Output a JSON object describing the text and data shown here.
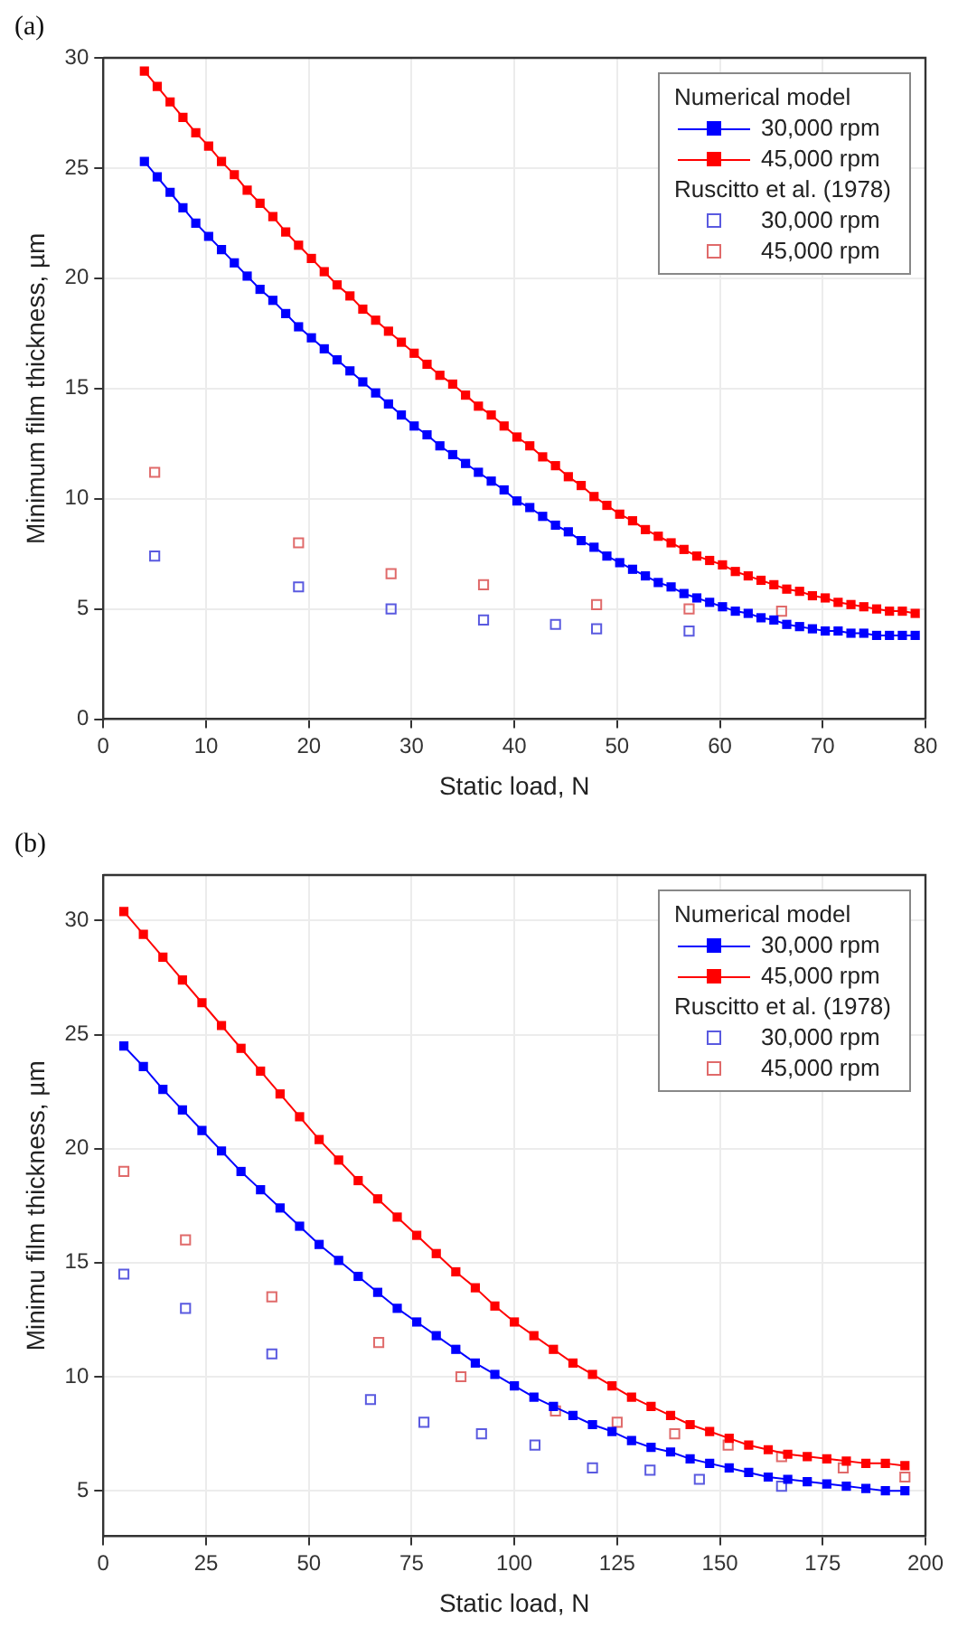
{
  "chart_data": [
    {
      "type": "line",
      "title": "(a)",
      "xlabel": "Static load, N",
      "ylabel": "Minimum film thickness, µm",
      "legend_title": "Numerical model",
      "annotations": [
        "Ruscitto et al. (1978)"
      ],
      "xlim": [
        0,
        80
      ],
      "xticks": [
        0,
        10,
        20,
        30,
        40,
        50,
        60,
        70,
        80
      ],
      "ylim": [
        0,
        30
      ],
      "yticks": [
        0,
        5,
        10,
        15,
        20,
        25,
        30
      ],
      "grid": true,
      "legend": "top right",
      "marker": "square",
      "line_style": "solid",
      "series": [
        {
          "name": "30,000 rpm",
          "color": "#0000ff",
          "x": [
            4,
            5.25,
            6.5,
            7.75,
            9,
            10.25,
            11.5,
            12.75,
            14,
            15.25,
            16.5,
            17.75,
            19,
            20.25,
            21.5,
            22.75,
            24,
            25.25,
            26.5,
            27.75,
            29,
            30.25,
            31.5,
            32.75,
            34,
            35.25,
            36.5,
            37.75,
            39,
            40.25,
            41.5,
            42.75,
            44,
            45.25,
            46.5,
            47.75,
            49,
            50.25,
            51.5,
            52.75,
            54,
            55.25,
            56.5,
            57.75,
            59,
            60.25,
            61.5,
            62.75,
            64,
            65.25,
            66.5,
            67.75,
            69,
            70.25,
            71.5,
            72.75,
            74,
            75.25,
            76.5,
            77.75,
            79
          ],
          "values": [
            25.3,
            24.6,
            23.9,
            23.2,
            22.5,
            21.9,
            21.3,
            20.7,
            20.1,
            19.5,
            19.0,
            18.4,
            17.8,
            17.3,
            16.8,
            16.3,
            15.8,
            15.3,
            14.8,
            14.3,
            13.8,
            13.3,
            12.9,
            12.4,
            12.0,
            11.6,
            11.2,
            10.8,
            10.4,
            9.9,
            9.6,
            9.2,
            8.8,
            8.5,
            8.1,
            7.8,
            7.4,
            7.1,
            6.8,
            6.5,
            6.2,
            6.0,
            5.7,
            5.5,
            5.3,
            5.1,
            4.9,
            4.8,
            4.6,
            4.5,
            4.3,
            4.2,
            4.1,
            4.0,
            4.0,
            3.9,
            3.9,
            3.8,
            3.8,
            3.8,
            3.8
          ]
        },
        {
          "name": "45,000 rpm",
          "color": "#ff0000",
          "x": [
            4,
            5.25,
            6.5,
            7.75,
            9,
            10.25,
            11.5,
            12.75,
            14,
            15.25,
            16.5,
            17.75,
            19,
            20.25,
            21.5,
            22.75,
            24,
            25.25,
            26.5,
            27.75,
            29,
            30.25,
            31.5,
            32.75,
            34,
            35.25,
            36.5,
            37.75,
            39,
            40.25,
            41.5,
            42.75,
            44,
            45.25,
            46.5,
            47.75,
            49,
            50.25,
            51.5,
            52.75,
            54,
            55.25,
            56.5,
            57.75,
            59,
            60.25,
            61.5,
            62.75,
            64,
            65.25,
            66.5,
            67.75,
            69,
            70.25,
            71.5,
            72.75,
            74,
            75.25,
            76.5,
            77.75,
            79
          ],
          "values": [
            29.4,
            28.7,
            28.0,
            27.3,
            26.6,
            26.0,
            25.3,
            24.7,
            24.0,
            23.4,
            22.8,
            22.1,
            21.5,
            20.9,
            20.3,
            19.7,
            19.2,
            18.6,
            18.1,
            17.6,
            17.1,
            16.6,
            16.1,
            15.6,
            15.2,
            14.7,
            14.2,
            13.8,
            13.3,
            12.8,
            12.4,
            11.9,
            11.5,
            11.0,
            10.6,
            10.1,
            9.7,
            9.3,
            9.0,
            8.6,
            8.3,
            8.0,
            7.7,
            7.4,
            7.2,
            7.0,
            6.7,
            6.5,
            6.3,
            6.1,
            5.9,
            5.8,
            5.6,
            5.5,
            5.3,
            5.2,
            5.1,
            5.0,
            4.9,
            4.9,
            4.8
          ]
        },
        {
          "name": "30,000 rpm",
          "type": "scatter",
          "color": "#5a5ae0",
          "x": [
            5,
            19,
            28,
            37,
            44,
            48,
            57
          ],
          "values": [
            7.4,
            6.0,
            5.0,
            4.5,
            4.3,
            4.1,
            4.0
          ]
        },
        {
          "name": "45,000 rpm",
          "type": "scatter",
          "color": "#e06a6a",
          "x": [
            5,
            19,
            28,
            37,
            48,
            57,
            66
          ],
          "values": [
            11.2,
            8.0,
            6.6,
            6.1,
            5.2,
            5.0,
            4.9
          ]
        }
      ]
    },
    {
      "type": "line",
      "title": "(b)",
      "xlabel": "Static load, N",
      "ylabel": "Minimu film thickness, µm",
      "legend_title": "Numerical model",
      "annotations": [
        "Ruscitto et al. (1978)"
      ],
      "xlim": [
        0,
        200
      ],
      "xticks": [
        0,
        25,
        50,
        75,
        100,
        125,
        150,
        175,
        200
      ],
      "ylim": [
        3,
        32
      ],
      "yticks": [
        5,
        10,
        15,
        20,
        25,
        30
      ],
      "grid": true,
      "legend": "top right",
      "marker": "square",
      "line_style": "solid",
      "series": [
        {
          "name": "30,000 rpm",
          "color": "#0000ff",
          "x": [
            5,
            9.75,
            14.5,
            19.25,
            24,
            28.75,
            33.5,
            38.25,
            43,
            47.75,
            52.5,
            57.25,
            62,
            66.75,
            71.5,
            76.25,
            81,
            85.75,
            90.5,
            95.25,
            100,
            104.75,
            109.5,
            114.25,
            119,
            123.75,
            128.5,
            133.25,
            138,
            142.75,
            147.5,
            152.25,
            157,
            161.75,
            166.5,
            171.25,
            176,
            180.75,
            185.5,
            190.25,
            195
          ],
          "values": [
            24.5,
            23.6,
            22.6,
            21.7,
            20.8,
            19.9,
            19.0,
            18.2,
            17.4,
            16.6,
            15.8,
            15.1,
            14.4,
            13.7,
            13.0,
            12.4,
            11.8,
            11.2,
            10.6,
            10.1,
            9.6,
            9.1,
            8.7,
            8.3,
            7.9,
            7.6,
            7.2,
            6.9,
            6.7,
            6.4,
            6.2,
            6.0,
            5.8,
            5.6,
            5.5,
            5.4,
            5.3,
            5.2,
            5.1,
            5.0,
            5.0
          ]
        },
        {
          "name": "45,000 rpm",
          "color": "#ff0000",
          "x": [
            5,
            9.75,
            14.5,
            19.25,
            24,
            28.75,
            33.5,
            38.25,
            43,
            47.75,
            52.5,
            57.25,
            62,
            66.75,
            71.5,
            76.25,
            81,
            85.75,
            90.5,
            95.25,
            100,
            104.75,
            109.5,
            114.25,
            119,
            123.75,
            128.5,
            133.25,
            138,
            142.75,
            147.5,
            152.25,
            157,
            161.75,
            166.5,
            171.25,
            176,
            180.75,
            185.5,
            190.25,
            195
          ],
          "values": [
            30.4,
            29.4,
            28.4,
            27.4,
            26.4,
            25.4,
            24.4,
            23.4,
            22.4,
            21.4,
            20.4,
            19.5,
            18.6,
            17.8,
            17.0,
            16.2,
            15.4,
            14.6,
            13.9,
            13.1,
            12.4,
            11.8,
            11.2,
            10.6,
            10.1,
            9.6,
            9.1,
            8.7,
            8.3,
            7.9,
            7.6,
            7.3,
            7.0,
            6.8,
            6.6,
            6.5,
            6.4,
            6.3,
            6.2,
            6.2,
            6.1
          ]
        },
        {
          "name": "30,000 rpm",
          "type": "scatter",
          "color": "#5a5ae0",
          "x": [
            5,
            20,
            41,
            65,
            78,
            92,
            105,
            119,
            133,
            145,
            165
          ],
          "values": [
            14.5,
            13.0,
            11.0,
            9.0,
            8.0,
            7.5,
            7.0,
            6.0,
            5.9,
            5.5,
            5.2
          ]
        },
        {
          "name": "45,000 rpm",
          "type": "scatter",
          "color": "#e06a6a",
          "x": [
            5,
            20,
            41,
            67,
            87,
            110,
            125,
            139,
            152,
            165,
            180,
            195
          ],
          "values": [
            19.0,
            16.0,
            13.5,
            11.5,
            10.0,
            8.5,
            8.0,
            7.5,
            7.0,
            6.5,
            6.0,
            5.6
          ]
        }
      ]
    }
  ]
}
